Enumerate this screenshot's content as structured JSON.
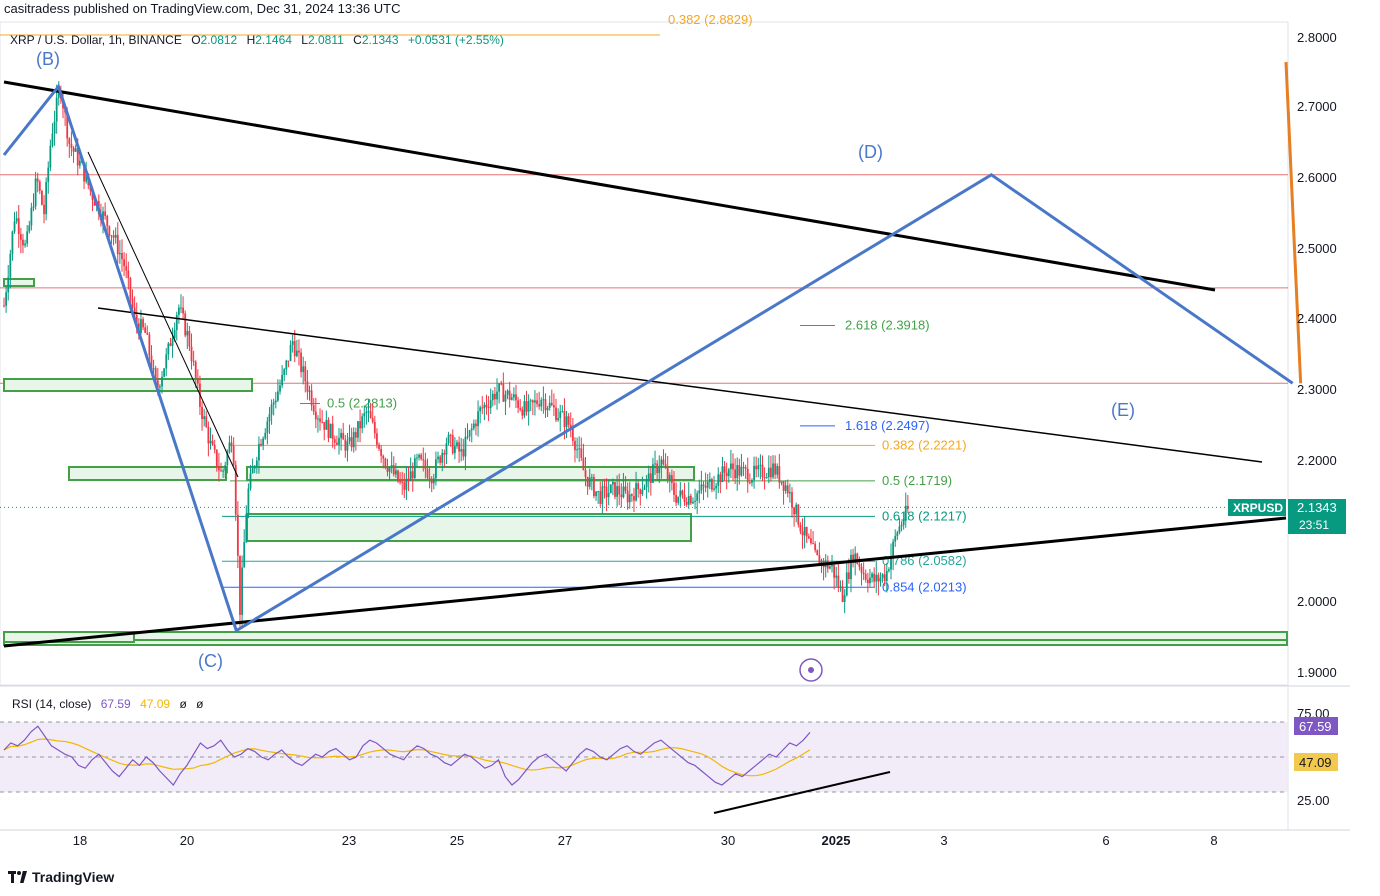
{
  "header": {
    "published_by": "casitradess published on TradingView.com, Dec 31, 2024 13:36 UTC"
  },
  "symbol": {
    "title": "XRP / U.S. Dollar, 1h, BINANCE",
    "open_label": "O",
    "open": "2.0812",
    "high_label": "H",
    "high": "2.1464",
    "low_label": "L",
    "low": "2.0811",
    "close_label": "C",
    "close": "2.1343",
    "change": "+0.0531 (+2.55%)"
  },
  "price_tag": {
    "ticker": "XRPUSD",
    "price": "2.1343",
    "countdown": "23:51"
  },
  "rsi": {
    "label": "RSI (14, close)",
    "value": "67.59",
    "ma": "47.09",
    "x1": "ø",
    "x2": "ø",
    "axis": [
      "75.00",
      "25.00"
    ],
    "mid_hidden": "50.00"
  },
  "footer": {
    "brand": "TradingView"
  },
  "colors": {
    "up": "#089981",
    "down": "#f23645",
    "wave": "#4a78c8",
    "orange": "#e67e22",
    "green_zone": "#43a047"
  },
  "chart_data": {
    "type": "candlestick",
    "title": "XRP / U.S. Dollar, 1h, BINANCE",
    "x_ticks": [
      "18",
      "20",
      "23",
      "25",
      "27",
      "30",
      "2025",
      "3",
      "6",
      "8"
    ],
    "y_ticks": [
      "2.8000",
      "2.7000",
      "2.6000",
      "2.5000",
      "2.4000",
      "2.3000",
      "2.2000",
      "2.0000",
      "1.9000"
    ],
    "ylim": [
      1.9,
      2.8
    ],
    "price_path": [
      [
        0.0,
        2.42
      ],
      [
        0.3,
        2.55
      ],
      [
        0.6,
        2.5
      ],
      [
        0.9,
        2.6
      ],
      [
        1.1,
        2.55
      ],
      [
        1.3,
        2.66
      ],
      [
        1.55,
        2.73
      ],
      [
        1.8,
        2.65
      ],
      [
        2.1,
        2.62
      ],
      [
        2.4,
        2.58
      ],
      [
        2.7,
        2.55
      ],
      [
        3.0,
        2.52
      ],
      [
        3.3,
        2.48
      ],
      [
        3.6,
        2.4
      ],
      [
        3.9,
        2.38
      ],
      [
        4.2,
        2.3
      ],
      [
        4.5,
        2.35
      ],
      [
        4.8,
        2.42
      ],
      [
        5.1,
        2.37
      ],
      [
        5.4,
        2.28
      ],
      [
        5.7,
        2.22
      ],
      [
        6.0,
        2.18
      ],
      [
        6.3,
        2.24
      ],
      [
        6.5,
        1.99
      ],
      [
        6.7,
        2.15
      ],
      [
        7.0,
        2.22
      ],
      [
        7.4,
        2.28
      ],
      [
        7.7,
        2.32
      ],
      [
        7.95,
        2.37
      ],
      [
        8.2,
        2.33
      ],
      [
        8.6,
        2.27
      ],
      [
        9.0,
        2.24
      ],
      [
        9.5,
        2.22
      ],
      [
        10.0,
        2.27
      ],
      [
        10.5,
        2.2
      ],
      [
        11.0,
        2.16
      ],
      [
        11.4,
        2.2
      ],
      [
        11.8,
        2.18
      ],
      [
        12.2,
        2.23
      ],
      [
        12.6,
        2.21
      ],
      [
        13.1,
        2.27
      ],
      [
        13.6,
        2.3
      ],
      [
        14.0,
        2.29
      ],
      [
        14.4,
        2.27
      ],
      [
        14.8,
        2.29
      ],
      [
        15.2,
        2.27
      ],
      [
        15.6,
        2.25
      ],
      [
        16.0,
        2.18
      ],
      [
        16.4,
        2.15
      ],
      [
        16.8,
        2.16
      ],
      [
        17.2,
        2.15
      ],
      [
        17.7,
        2.17
      ],
      [
        18.1,
        2.2
      ],
      [
        18.5,
        2.15
      ],
      [
        19.0,
        2.15
      ],
      [
        19.5,
        2.17
      ],
      [
        20.0,
        2.19
      ],
      [
        20.6,
        2.18
      ],
      [
        21.2,
        2.19
      ],
      [
        21.6,
        2.16
      ],
      [
        22.0,
        2.1
      ],
      [
        22.4,
        2.06
      ],
      [
        22.8,
        2.05
      ],
      [
        23.1,
        2.01
      ],
      [
        23.4,
        2.07
      ],
      [
        23.7,
        2.04
      ],
      [
        24.0,
        2.03
      ],
      [
        24.3,
        2.04
      ],
      [
        24.6,
        2.1
      ],
      [
        24.9,
        2.13
      ]
    ],
    "wave_points": {
      "B": [
        1.5,
        2.73
      ],
      "C": [
        6.4,
        1.96
      ],
      "D": [
        27.2,
        2.605
      ],
      "E": [
        35.5,
        2.31
      ]
    },
    "wave_labels": [
      "(B)",
      "(C)",
      "(D)",
      "(E)"
    ],
    "fib_levels": [
      {
        "label": "2.618 (2.3918)",
        "price": 2.3918,
        "color": "#43a047"
      },
      {
        "label": "1.618 (2.2497)",
        "price": 2.2497,
        "color": "#2962ff"
      },
      {
        "label": "0.382 (2.2221)",
        "price": 2.2221,
        "color": "#f5a623"
      },
      {
        "label": "0.5 (2.1719)",
        "price": 2.1719,
        "color": "#43a047"
      },
      {
        "label": "0.618 (2.1217)",
        "price": 2.1217,
        "color": "#089981"
      },
      {
        "label": "0.786 (2.0582)",
        "price": 2.0582,
        "color": "#26a69a"
      },
      {
        "label": "0.854 (2.0213)",
        "price": 2.0213,
        "color": "#2962ff"
      },
      {
        "label": "0.5 (2.2813)",
        "price": 2.2813,
        "color": "#43a047"
      },
      {
        "label": "0.382 (2.8829)",
        "price": 2.8829,
        "color": "#f5a623"
      }
    ],
    "horizontal_levels": [
      2.605,
      2.445,
      2.31
    ],
    "rsi_values": [
      55,
      60,
      58,
      62,
      68,
      72,
      65,
      58,
      55,
      52,
      50,
      44,
      42,
      48,
      52,
      46,
      40,
      36,
      42,
      48,
      44,
      50,
      46,
      40,
      35,
      30,
      38,
      44,
      52,
      60,
      56,
      58,
      62,
      55,
      50,
      52,
      56,
      54,
      50,
      48,
      52,
      55,
      50,
      46,
      44,
      48,
      52,
      50,
      54,
      56,
      52,
      48,
      50,
      58,
      62,
      60,
      56,
      52,
      50,
      48,
      54,
      58,
      56,
      52,
      50,
      46,
      44,
      48,
      52,
      50,
      46,
      42,
      44,
      48,
      36,
      30,
      34,
      40,
      46,
      50,
      52,
      48,
      44,
      40,
      46,
      52,
      56,
      54,
      50,
      48,
      52,
      56,
      58,
      54,
      52,
      56,
      60,
      62,
      58,
      54,
      50,
      46,
      44,
      40,
      36,
      32,
      30,
      34,
      38,
      36,
      40,
      44,
      48,
      52,
      50,
      55,
      60,
      58,
      62,
      67.59
    ]
  }
}
